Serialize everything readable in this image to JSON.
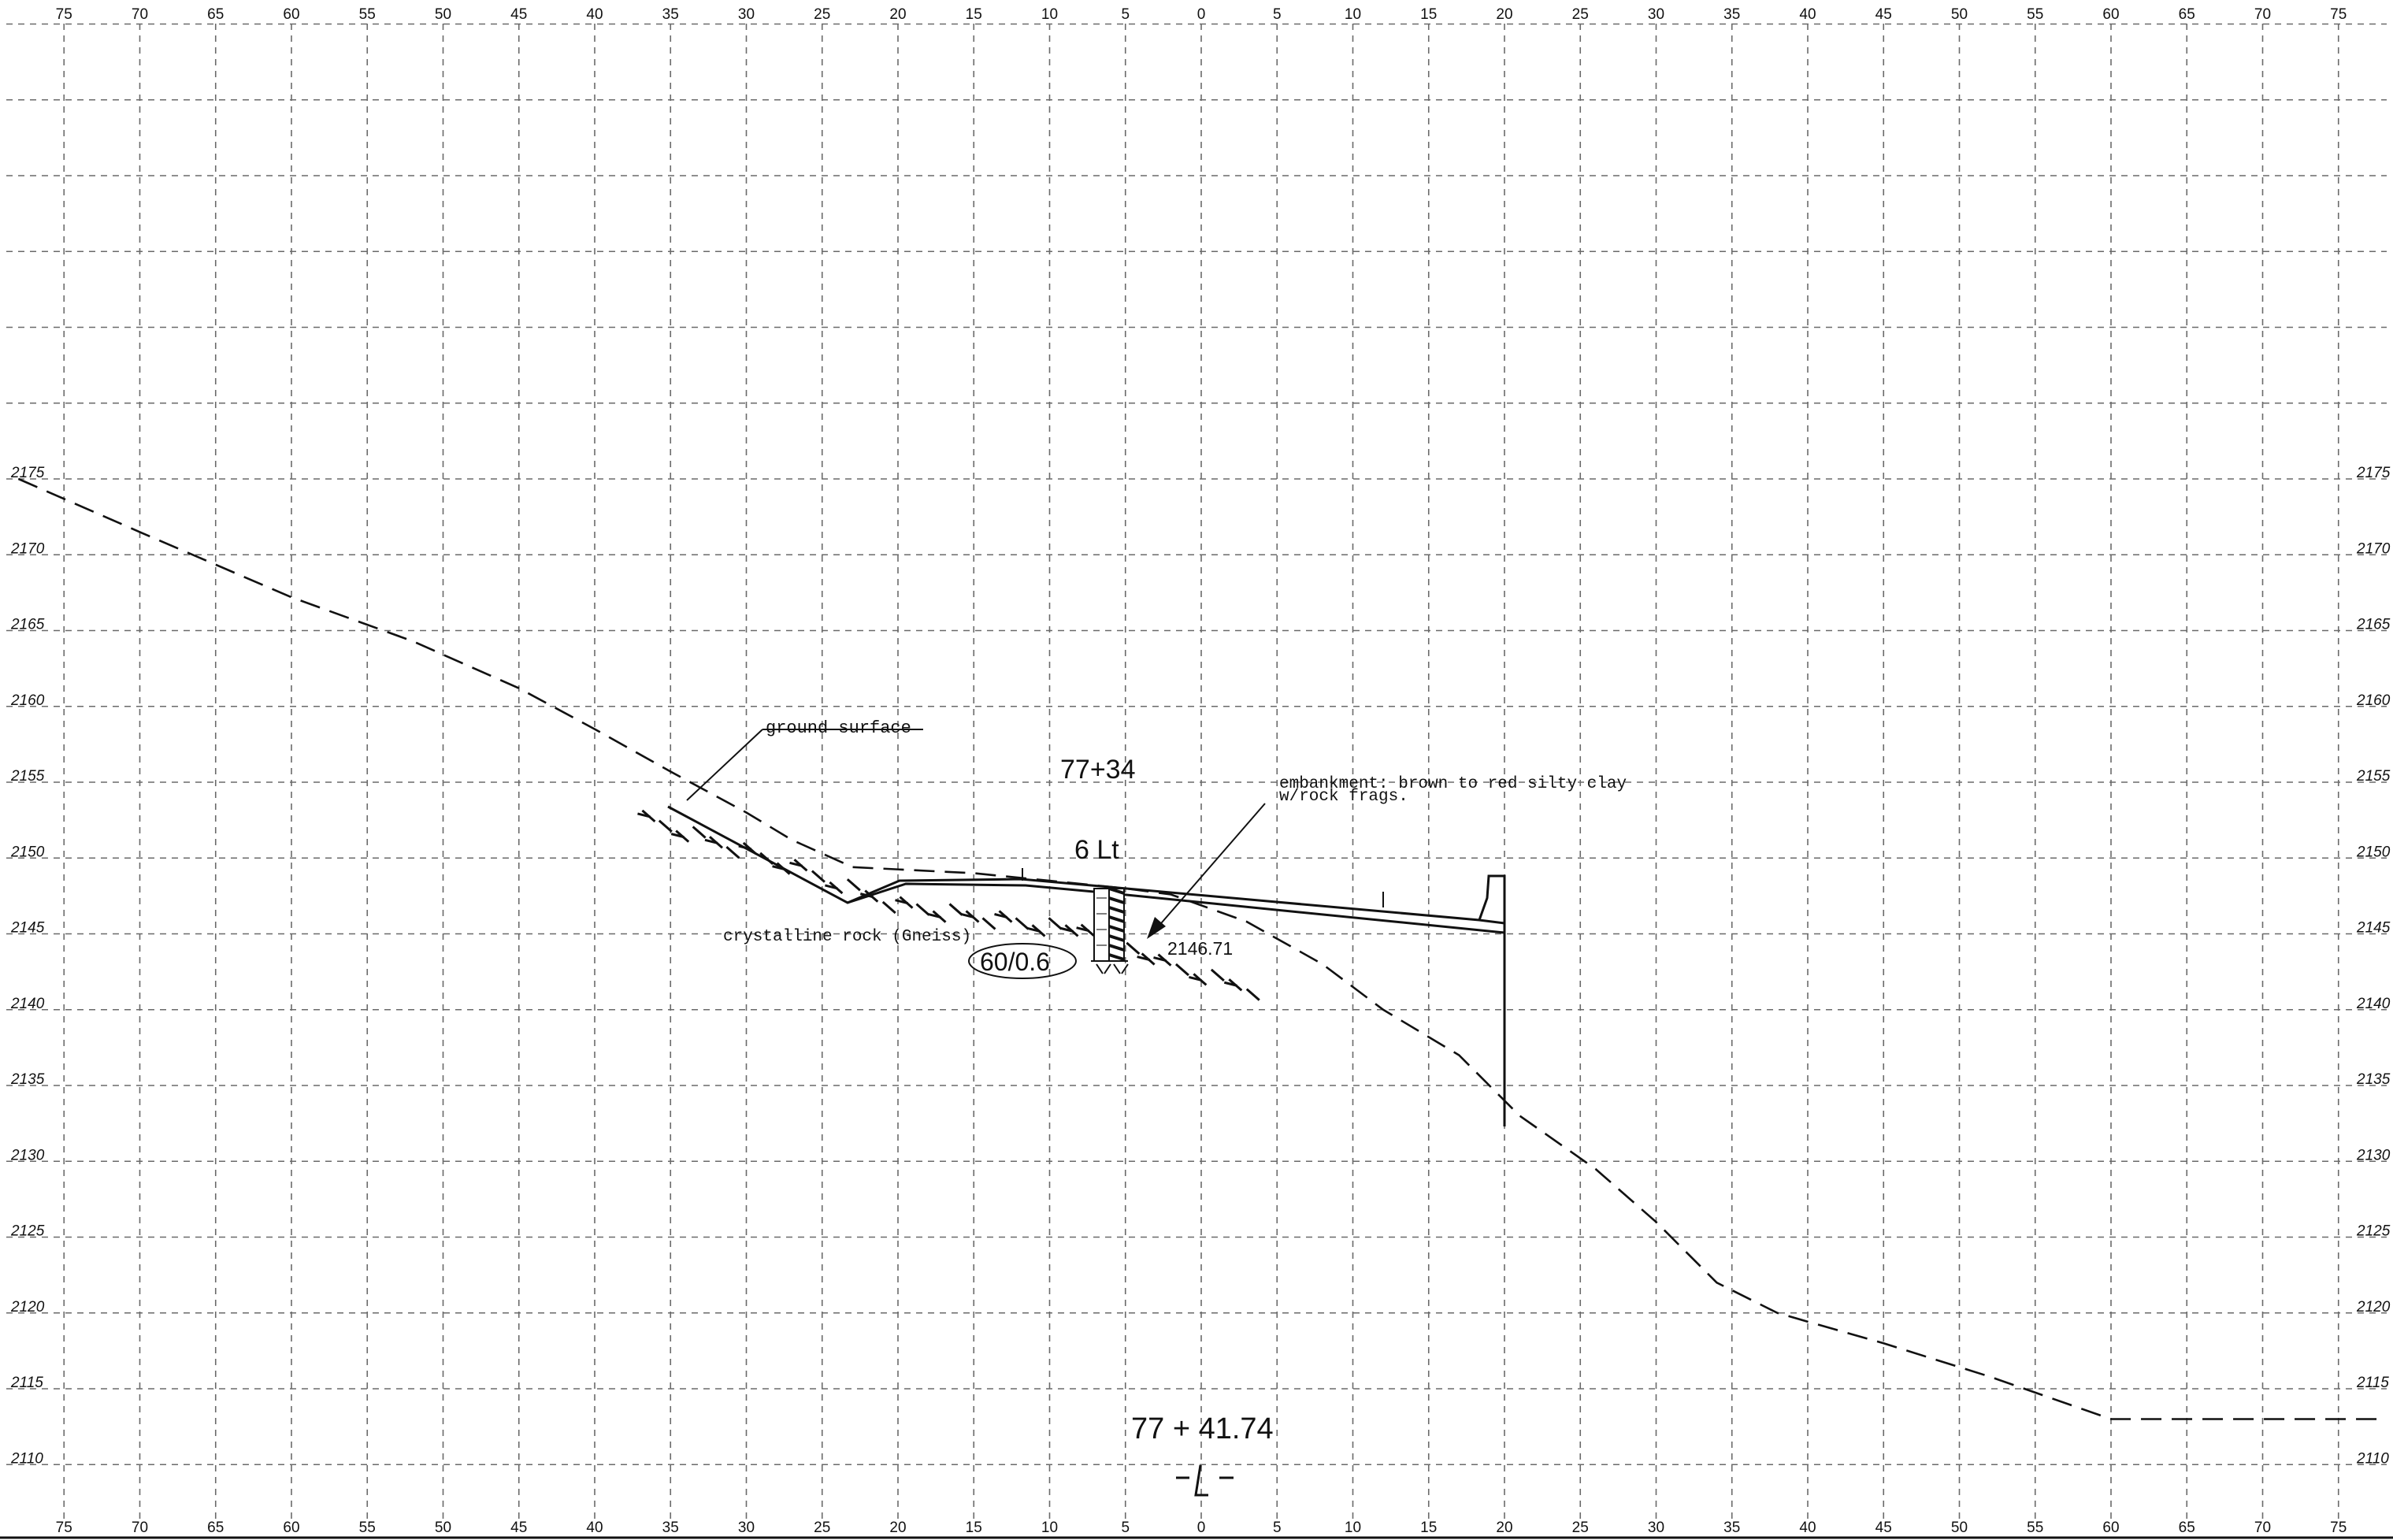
{
  "axes": {
    "offset_ticks_top": [
      "75",
      "70",
      "65",
      "60",
      "55",
      "50",
      "45",
      "40",
      "35",
      "30",
      "25",
      "20",
      "15",
      "10",
      "5",
      "0",
      "5",
      "10",
      "15",
      "20",
      "25",
      "30",
      "35",
      "40",
      "45",
      "50",
      "55",
      "60",
      "65",
      "70",
      "75"
    ],
    "offset_ticks_bottom": [
      "75",
      "70",
      "65",
      "60",
      "55",
      "50",
      "45",
      "40",
      "35",
      "30",
      "25",
      "20",
      "15",
      "10",
      "5",
      "0",
      "5",
      "10",
      "15",
      "20",
      "25",
      "30",
      "35",
      "40",
      "45",
      "50",
      "55",
      "60",
      "65",
      "70",
      "75"
    ],
    "elevation_ticks": [
      "2175",
      "2170",
      "2165",
      "2160",
      "2155",
      "2150",
      "2145",
      "2140",
      "2135",
      "2130",
      "2125",
      "2120",
      "2115",
      "2110"
    ]
  },
  "labels": {
    "ground_surface": "ground surface",
    "boring_station": "77+34",
    "boring_offset": "6 Lt",
    "embankment_line1": "embankment: brown to red silty clay",
    "embankment_line2": "w/rock frags.",
    "rock": "crystalline rock (Gneiss)",
    "blow_count": "60/0.6",
    "boring_elevation": "2146.71",
    "section_station": "77 + 41.74",
    "centerline": "-L-"
  },
  "diagram_data": {
    "ground_profile": [
      [
        -78,
        2175
      ],
      [
        -70,
        2171.5
      ],
      [
        -60,
        2167.2
      ],
      [
        -52,
        2164.3
      ],
      [
        -45,
        2161.2
      ],
      [
        -40,
        2158.5
      ],
      [
        -35,
        2155.7
      ],
      [
        -30,
        2153
      ],
      [
        -27,
        2151.2
      ],
      [
        -23,
        2149.4
      ],
      [
        -15,
        2149
      ],
      [
        -10,
        2148.5
      ],
      [
        -5,
        2148
      ],
      [
        -2,
        2147.6
      ],
      [
        3,
        2145.8
      ],
      [
        8,
        2143
      ],
      [
        12,
        2140
      ],
      [
        17,
        2137
      ],
      [
        21,
        2133
      ],
      [
        26,
        2129.5
      ],
      [
        30,
        2126
      ],
      [
        34,
        2122
      ],
      [
        38,
        2120
      ],
      [
        45,
        2118
      ],
      [
        52,
        2115.8
      ],
      [
        60,
        2113
      ],
      [
        78,
        2113
      ]
    ],
    "rock_surface": [
      [
        -37,
        2153
      ],
      [
        -27,
        2149.8
      ],
      [
        -20,
        2147.2
      ],
      [
        -8,
        2145.5
      ],
      [
        -3,
        2143.5
      ],
      [
        4,
        2141.5
      ]
    ],
    "boring_log": {
      "offset": -6,
      "top_elevation": 2148.8,
      "bottom_elevation": 2141.9
    }
  }
}
